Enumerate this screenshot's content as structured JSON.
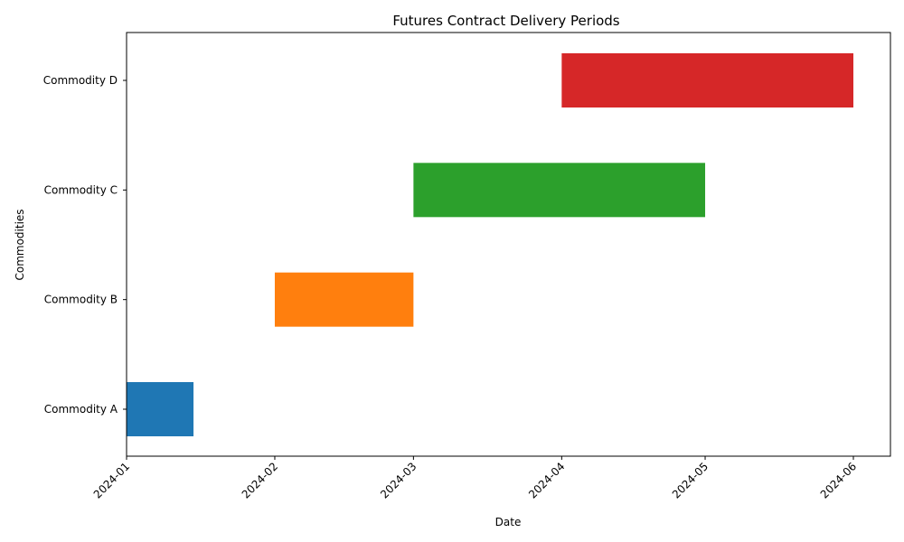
{
  "chart_data": {
    "type": "bar",
    "orientation": "horizontal",
    "title": "Futures Contract Delivery Periods",
    "xlabel": "Date",
    "ylabel": "Commodities",
    "x_scale": "date",
    "xlim": [
      "2024-01-01",
      "2024-06-08"
    ],
    "x_ticks": [
      "2024-01",
      "2024-02",
      "2024-03",
      "2024-04",
      "2024-05",
      "2024-06"
    ],
    "x_tick_dates": [
      "2024-01-01",
      "2024-02-01",
      "2024-03-01",
      "2024-04-01",
      "2024-05-01",
      "2024-06-01"
    ],
    "x_tick_rotation_deg": 45,
    "categories": [
      "Commodity A",
      "Commodity B",
      "Commodity C",
      "Commodity D"
    ],
    "series": [
      {
        "category": "Commodity A",
        "start": "2024-01-01",
        "end": "2024-01-15",
        "color": "#1f77b4"
      },
      {
        "category": "Commodity B",
        "start": "2024-02-01",
        "end": "2024-03-01",
        "color": "#ff7f0e"
      },
      {
        "category": "Commodity C",
        "start": "2024-03-01",
        "end": "2024-05-01",
        "color": "#2ca02c"
      },
      {
        "category": "Commodity D",
        "start": "2024-04-01",
        "end": "2024-06-01",
        "color": "#d62728"
      }
    ],
    "grid": false,
    "legend": "none"
  }
}
